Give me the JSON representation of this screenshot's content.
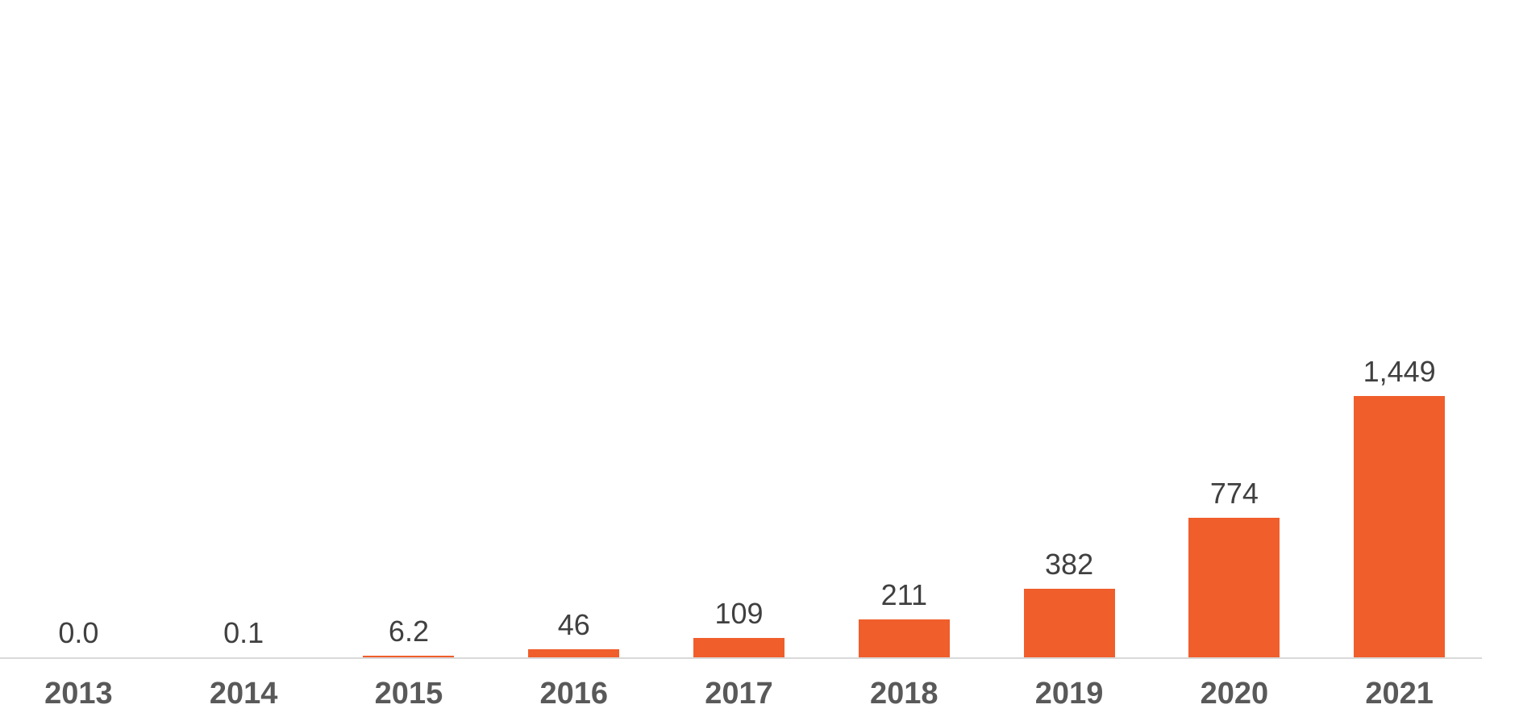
{
  "chart_data": {
    "type": "bar",
    "title": "",
    "categories": [
      "2013",
      "2014",
      "2015",
      "2016",
      "2017",
      "2018",
      "2019",
      "2020",
      "2021"
    ],
    "values": [
      0.0,
      0.1,
      6.2,
      46,
      109,
      211,
      382,
      774,
      1449
    ],
    "value_labels": [
      "0.0",
      "0.1",
      "6.2",
      "46",
      "109",
      "211",
      "382",
      "774",
      "1,449"
    ],
    "series_name": "",
    "xlabel": "",
    "ylabel": "",
    "ylim": [
      0,
      1449
    ],
    "grid": false,
    "legend": false,
    "y_axis_visible": false,
    "bar_color": "#F05E2B",
    "axis_line_color": "#D9D9D9",
    "value_label_color": "#404040",
    "category_label_color": "#595959",
    "background_color": "#FFFFFF"
  }
}
